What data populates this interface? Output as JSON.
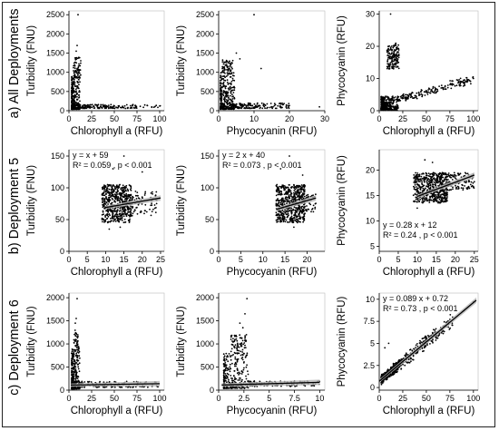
{
  "row_labels": [
    "a) All Deployments",
    "b) Deployment 5",
    "c) Deployment 6"
  ],
  "colors": {
    "points": "#000000",
    "fit_line": "#000000",
    "ci_band": "#b5b5b5",
    "background": "#ffffff"
  },
  "chart_data": [
    {
      "row": 0,
      "type": "scatter",
      "xlabel": "Chlorophyll a (RFU)",
      "ylabel": "Turbidity (FNU)",
      "xlim": [
        0,
        105
      ],
      "ylim": [
        0,
        2600
      ],
      "xticks": [
        0,
        25,
        50,
        75,
        100
      ],
      "yticks": [
        0,
        500,
        1000,
        1500,
        2000,
        2500
      ],
      "clusters": [
        {
          "n": 320,
          "x": [
            3,
            12
          ],
          "y": [
            40,
            900
          ],
          "skew": 2.2
        },
        {
          "n": 70,
          "x": [
            5,
            13
          ],
          "y": [
            850,
            1400
          ],
          "skew": 1.2
        },
        {
          "n": 160,
          "x": [
            10,
            75
          ],
          "y": [
            60,
            160
          ],
          "skew": 1.4
        },
        {
          "n": 12,
          "x": [
            75,
            103
          ],
          "y": [
            80,
            150
          ],
          "skew": 1
        }
      ],
      "points": [
        [
          10,
          2500
        ],
        [
          9,
          1700
        ],
        [
          8,
          1550
        ],
        [
          13,
          1300
        ],
        [
          100,
          120
        ]
      ],
      "fit": null,
      "annotation": []
    },
    {
      "row": 0,
      "type": "scatter",
      "xlabel": "Phycocyanin (RFU)",
      "ylabel": "Turbidity (FNU)",
      "xlim": [
        0,
        30
      ],
      "ylim": [
        0,
        2600
      ],
      "xticks": [
        0,
        10,
        20,
        30
      ],
      "yticks": [
        0,
        500,
        1000,
        1500,
        2000,
        2500
      ],
      "clusters": [
        {
          "n": 340,
          "x": [
            0.5,
            4.5
          ],
          "y": [
            40,
            1000
          ],
          "skew": 2
        },
        {
          "n": 60,
          "x": [
            1,
            4
          ],
          "y": [
            950,
            1350
          ],
          "skew": 1
        },
        {
          "n": 150,
          "x": [
            4,
            20
          ],
          "y": [
            60,
            200
          ],
          "skew": 1.5
        }
      ],
      "points": [
        [
          10,
          2500
        ],
        [
          5,
          1500
        ],
        [
          6,
          1350
        ],
        [
          12,
          1100
        ],
        [
          28.5,
          100
        ]
      ],
      "fit": null,
      "annotation": []
    },
    {
      "row": 0,
      "type": "scatter",
      "xlabel": "Chlorophyll a (RFU)",
      "ylabel": "Phycocyanin (RFU)",
      "xlim": [
        0,
        105
      ],
      "ylim": [
        0,
        31
      ],
      "xticks": [
        0,
        25,
        50,
        75,
        100
      ],
      "yticks": [
        0,
        10,
        20,
        30
      ],
      "clusters": [
        {
          "n": 380,
          "x": [
            2,
            20
          ],
          "y": [
            0.2,
            4.5
          ],
          "skew": 1.6
        },
        {
          "n": 150,
          "x": [
            8,
            21
          ],
          "y": [
            13,
            21
          ],
          "skew": 1
        },
        {
          "n": 180,
          "x": [
            20,
            100
          ],
          "y": [
            3,
            9
          ],
          "skew": 1.3,
          "trend": [
            0.08,
            1.8
          ]
        }
      ],
      "points": [
        [
          12,
          30
        ],
        [
          100,
          10
        ],
        [
          85,
          8
        ],
        [
          60,
          5.5
        ]
      ],
      "fit": null,
      "annotation": []
    },
    {
      "row": 1,
      "type": "scatter",
      "xlabel": "Chlorophyll a (RFU)",
      "ylabel": "Turbidity (FNU)",
      "xlim": [
        0,
        26
      ],
      "ylim": [
        0,
        160
      ],
      "xticks": [
        0,
        5,
        10,
        15,
        20,
        25
      ],
      "yticks": [
        0,
        50,
        100,
        150
      ],
      "clusters": [
        {
          "n": 500,
          "x": [
            9,
            17
          ],
          "y": [
            45,
            105
          ],
          "skew": 1
        },
        {
          "n": 120,
          "x": [
            13,
            24
          ],
          "y": [
            55,
            95
          ],
          "skew": 1
        }
      ],
      "points": [
        [
          15,
          150
        ],
        [
          12,
          130
        ],
        [
          20,
          125
        ],
        [
          11,
          35
        ],
        [
          14,
          38
        ]
      ],
      "fit": {
        "slope": 1,
        "intercept": 59,
        "x_range": [
          10,
          25
        ]
      },
      "annotation": [
        "y =  x + 59",
        "R² = 0.059 , p < 0.001"
      ]
    },
    {
      "row": 1,
      "type": "scatter",
      "xlabel": "Phycocyanin (RFU)",
      "ylabel": "Turbidity (FNU)",
      "xlim": [
        0,
        24
      ],
      "ylim": [
        0,
        160
      ],
      "xticks": [
        0,
        5,
        10,
        15,
        20
      ],
      "yticks": [
        0,
        50,
        100,
        150
      ],
      "clusters": [
        {
          "n": 560,
          "x": [
            13,
            19.5
          ],
          "y": [
            45,
            105
          ],
          "skew": 1
        },
        {
          "n": 60,
          "x": [
            18,
            22
          ],
          "y": [
            60,
            90
          ],
          "skew": 1
        }
      ],
      "points": [
        [
          16,
          150
        ],
        [
          14,
          130
        ],
        [
          19,
          120
        ],
        [
          17,
          38
        ]
      ],
      "fit": {
        "slope": 2,
        "intercept": 40,
        "x_range": [
          13,
          22
        ]
      },
      "annotation": [
        "y = 2 x + 40",
        "R² = 0.073 , p < 0.001"
      ]
    },
    {
      "row": 1,
      "type": "scatter",
      "xlabel": "Chlorophyll a (RFU)",
      "ylabel": "Phycocyanin (RFU)",
      "xlim": [
        0,
        26
      ],
      "ylim": [
        4,
        24
      ],
      "xticks": [
        0,
        5,
        10,
        15,
        20,
        25
      ],
      "yticks": [
        5,
        10,
        15,
        20
      ],
      "clusters": [
        {
          "n": 520,
          "x": [
            9,
            18
          ],
          "y": [
            13.5,
            19.5
          ],
          "skew": 1
        },
        {
          "n": 140,
          "x": [
            15,
            25
          ],
          "y": [
            16,
            19.5
          ],
          "skew": 1
        }
      ],
      "points": [
        [
          12,
          22
        ],
        [
          14,
          21.5
        ],
        [
          10,
          12.5
        ]
      ],
      "fit": {
        "slope": 0.28,
        "intercept": 12,
        "x_range": [
          10,
          25
        ]
      },
      "annotation": [
        "y = 0.28 x + 12",
        "R² = 0.24 , p < 0.001"
      ]
    },
    {
      "row": 2,
      "type": "scatter",
      "xlabel": "Chlorophyll a (RFU)",
      "ylabel": "Turbidity (FNU)",
      "xlim": [
        0,
        105
      ],
      "ylim": [
        0,
        2100
      ],
      "xticks": [
        0,
        25,
        50,
        75,
        100
      ],
      "yticks": [
        0,
        500,
        1000,
        1500,
        2000
      ],
      "clusters": [
        {
          "n": 300,
          "x": [
            3,
            12
          ],
          "y": [
            30,
            900
          ],
          "skew": 2.2
        },
        {
          "n": 40,
          "x": [
            5,
            11
          ],
          "y": [
            850,
            1300
          ],
          "skew": 1
        },
        {
          "n": 140,
          "x": [
            10,
            100
          ],
          "y": [
            60,
            190
          ],
          "skew": 1.5
        }
      ],
      "points": [
        [
          9,
          1980
        ],
        [
          8,
          1550
        ],
        [
          7,
          1450
        ]
      ],
      "fit": {
        "slope": 0.3,
        "intercept": 110,
        "x_range": [
          2,
          100
        ]
      },
      "annotation": []
    },
    {
      "row": 2,
      "type": "scatter",
      "xlabel": "Phycocyanin (RFU)",
      "ylabel": "Turbidity (FNU)",
      "xlim": [
        0,
        10.5
      ],
      "ylim": [
        0,
        2100
      ],
      "xticks": [
        0,
        2.5,
        5,
        7.5,
        10
      ],
      "yticks": [
        0,
        500,
        1000,
        1500,
        2000
      ],
      "clusters": [
        {
          "n": 260,
          "x": [
            0.5,
            3
          ],
          "y": [
            40,
            800
          ],
          "skew": 2
        },
        {
          "n": 80,
          "x": [
            1.2,
            2.8
          ],
          "y": [
            750,
            1200
          ],
          "skew": 1
        },
        {
          "n": 110,
          "x": [
            3,
            10
          ],
          "y": [
            80,
            200
          ],
          "skew": 1.2
        }
      ],
      "points": [
        [
          2.8,
          1980
        ],
        [
          2.6,
          1650
        ],
        [
          2.1,
          1450
        ],
        [
          2.4,
          1350
        ]
      ],
      "fit": {
        "slope": 6,
        "intercept": 110,
        "x_range": [
          0.3,
          10
        ]
      },
      "annotation": []
    },
    {
      "row": 2,
      "type": "scatter",
      "xlabel": "Chlorophyll a (RFU)",
      "ylabel": "Phycocyanin (RFU)",
      "xlim": [
        0,
        105
      ],
      "ylim": [
        -0.3,
        10.7
      ],
      "xticks": [
        0,
        25,
        50,
        75,
        100
      ],
      "yticks": [
        0,
        2.5,
        5,
        7.5,
        10
      ],
      "clusters": [
        {
          "n": 330,
          "x": [
            2,
            20
          ],
          "y": [
            0,
            3
          ],
          "skew": 1.3,
          "trend": [
            0.089,
            0.72
          ],
          "spread": 0.6
        },
        {
          "n": 260,
          "x": [
            15,
            80
          ],
          "y": [
            0,
            9
          ],
          "skew": 1.4,
          "trend": [
            0.089,
            0.72
          ],
          "spread": 0.9
        }
      ],
      "points": [
        [
          100,
          9.7
        ],
        [
          90,
          8.7
        ],
        [
          10,
          5
        ],
        [
          6,
          4.5
        ]
      ],
      "fit": {
        "slope": 0.089,
        "intercept": 0.72,
        "x_range": [
          0,
          103
        ]
      },
      "annotation": [
        "y = 0.089 x + 0.72",
        "R² = 0.73 , p < 0.001"
      ]
    }
  ]
}
